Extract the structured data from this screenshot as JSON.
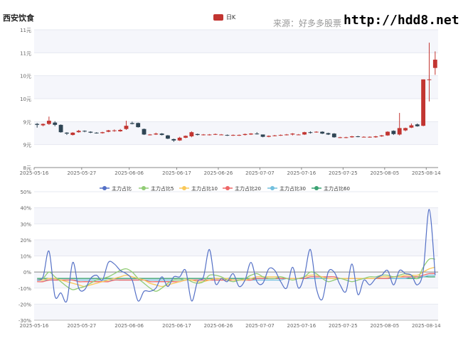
{
  "header": {
    "title": "西安饮食",
    "source": "来源：好多多股票",
    "site": "http://hdd8.net"
  },
  "chart_data": [
    {
      "type": "candlestick",
      "legend": [
        "日K"
      ],
      "up_color": "#c23531",
      "down_color": "#2f4554",
      "y_tick_labels": [
        "8元",
        "9元",
        "9元",
        "10元",
        "10元",
        "11元",
        "11元"
      ],
      "ylim": [
        8.0,
        11.0
      ],
      "x_tick_labels": [
        "2025-05-16",
        "2025-05-27",
        "2025-06-06",
        "2025-06-17",
        "2025-06-26",
        "2025-07-07",
        "2025-07-16",
        "2025-07-25",
        "2025-08-05",
        "2025-08-14"
      ],
      "candles": [
        [
          8.95,
          8.93,
          8.87,
          8.97
        ],
        [
          8.92,
          8.95,
          8.9,
          8.96
        ],
        [
          8.95,
          9.02,
          8.93,
          9.11
        ],
        [
          8.98,
          8.93,
          8.9,
          9.01
        ],
        [
          8.93,
          8.77,
          8.76,
          8.94
        ],
        [
          8.76,
          8.74,
          8.71,
          8.77
        ],
        [
          8.71,
          8.76,
          8.7,
          8.77
        ],
        [
          8.77,
          8.8,
          8.76,
          8.82
        ],
        [
          8.8,
          8.79,
          8.77,
          8.81
        ],
        [
          8.78,
          8.76,
          8.75,
          8.79
        ],
        [
          8.76,
          8.75,
          8.74,
          8.77
        ],
        [
          8.75,
          8.77,
          8.74,
          8.78
        ],
        [
          8.78,
          8.81,
          8.77,
          8.82
        ],
        [
          8.8,
          8.81,
          8.78,
          8.83
        ],
        [
          8.79,
          8.82,
          8.78,
          8.84
        ],
        [
          8.84,
          8.91,
          8.82,
          9.02
        ],
        [
          8.97,
          8.95,
          8.94,
          9.0
        ],
        [
          8.97,
          8.88,
          8.87,
          8.98
        ],
        [
          8.84,
          8.72,
          8.71,
          8.85
        ],
        [
          8.72,
          8.72,
          8.7,
          8.73
        ],
        [
          8.72,
          8.74,
          8.71,
          8.76
        ],
        [
          8.74,
          8.71,
          8.7,
          8.75
        ],
        [
          8.7,
          8.63,
          8.62,
          8.71
        ],
        [
          8.62,
          8.59,
          8.56,
          8.63
        ],
        [
          8.59,
          8.65,
          8.58,
          8.67
        ],
        [
          8.65,
          8.69,
          8.64,
          8.7
        ],
        [
          8.68,
          8.77,
          8.66,
          8.79
        ],
        [
          8.73,
          8.71,
          8.7,
          8.74
        ],
        [
          8.71,
          8.72,
          8.7,
          8.73
        ],
        [
          8.71,
          8.72,
          8.7,
          8.73
        ],
        [
          8.72,
          8.73,
          8.71,
          8.74
        ],
        [
          8.72,
          8.72,
          8.71,
          8.73
        ],
        [
          8.71,
          8.7,
          8.69,
          8.72
        ],
        [
          8.7,
          8.71,
          8.69,
          8.72
        ],
        [
          8.7,
          8.71,
          8.69,
          8.72
        ],
        [
          8.71,
          8.73,
          8.7,
          8.74
        ],
        [
          8.72,
          8.74,
          8.71,
          8.75
        ],
        [
          8.74,
          8.73,
          8.72,
          8.77
        ],
        [
          8.72,
          8.67,
          8.66,
          8.72
        ],
        [
          8.67,
          8.69,
          8.66,
          8.7
        ],
        [
          8.69,
          8.7,
          8.68,
          8.71
        ],
        [
          8.7,
          8.71,
          8.69,
          8.72
        ],
        [
          8.71,
          8.72,
          8.7,
          8.73
        ],
        [
          8.72,
          8.74,
          8.7,
          8.75
        ],
        [
          8.72,
          8.72,
          8.71,
          8.73
        ],
        [
          8.72,
          8.77,
          8.71,
          8.78
        ],
        [
          8.77,
          8.76,
          8.74,
          8.79
        ],
        [
          8.77,
          8.78,
          8.76,
          8.79
        ],
        [
          8.78,
          8.74,
          8.73,
          8.79
        ],
        [
          8.75,
          8.72,
          8.71,
          8.76
        ],
        [
          8.74,
          8.66,
          8.65,
          8.75
        ],
        [
          8.65,
          8.66,
          8.64,
          8.67
        ],
        [
          8.65,
          8.66,
          8.64,
          8.67
        ],
        [
          8.66,
          8.68,
          8.65,
          8.69
        ],
        [
          8.68,
          8.67,
          8.66,
          8.69
        ],
        [
          8.67,
          8.67,
          8.66,
          8.68
        ],
        [
          8.66,
          8.67,
          8.65,
          8.68
        ],
        [
          8.66,
          8.68,
          8.65,
          8.69
        ],
        [
          8.68,
          8.7,
          8.67,
          8.71
        ],
        [
          8.7,
          8.78,
          8.69,
          8.79
        ],
        [
          8.8,
          8.73,
          8.71,
          8.81
        ],
        [
          8.72,
          8.86,
          8.7,
          9.19
        ],
        [
          8.81,
          8.86,
          8.79,
          8.87
        ],
        [
          8.87,
          8.92,
          8.86,
          8.96
        ],
        [
          8.94,
          8.9,
          8.89,
          8.96
        ],
        [
          8.91,
          9.92,
          8.9,
          9.92
        ],
        [
          9.92,
          9.92,
          9.44,
          10.72
        ],
        [
          10.17,
          10.35,
          10.02,
          10.53
        ]
      ]
    },
    {
      "type": "line",
      "legend_names": [
        "主力占比",
        "主力占比5",
        "主力占比10",
        "主力占比20",
        "主力占比30",
        "主力占比60"
      ],
      "colors": [
        "#5470c6",
        "#91cc75",
        "#fac858",
        "#ee6666",
        "#73c0de",
        "#3ba272"
      ],
      "y_tick_labels": [
        "-30%",
        "-20%",
        "-10%",
        "0%",
        "10%",
        "20%",
        "30%",
        "40%",
        "50%"
      ],
      "ylim": [
        -30,
        50
      ],
      "x_tick_labels": [
        "2025-05-16",
        "2025-05-27",
        "2025-06-06",
        "2025-06-17",
        "2025-06-26",
        "2025-07-07",
        "2025-07-16",
        "2025-07-25",
        "2025-08-05",
        "2025-08-14"
      ],
      "series": [
        {
          "name": "主力占比",
          "values": [
            -5,
            -3,
            13,
            -15,
            -13,
            -18,
            6,
            -10,
            -11,
            -4,
            -2,
            -5,
            6,
            5,
            1,
            -1,
            -5,
            -18,
            -12,
            -12,
            -10,
            -3,
            -9,
            -3,
            -3,
            1,
            -18,
            -6,
            -3,
            14,
            -7,
            -4,
            -6,
            -1,
            -9,
            -5,
            6,
            -6,
            -7,
            2,
            1,
            -6,
            -10,
            3,
            -10,
            -2,
            14,
            -10,
            -17,
            0,
            0,
            -8,
            -12,
            5,
            -14,
            -5,
            -8,
            -4,
            -2,
            1,
            -8,
            1,
            -1,
            -2,
            -8,
            1,
            39,
            -2
          ]
        },
        {
          "name": "主力占比5",
          "values": [
            -5,
            -4,
            0,
            -3,
            -6,
            -9,
            -11,
            -10,
            -9,
            -7,
            -5,
            -4,
            -3,
            -1,
            1,
            2,
            0,
            -4,
            -7,
            -10,
            -12,
            -10,
            -7,
            -5,
            -5,
            -4,
            -6,
            -7,
            -6,
            -2,
            -2,
            -3,
            -5,
            -6,
            -5,
            -4,
            -2,
            -1,
            -3,
            -4,
            -4,
            -3,
            -4,
            -5,
            -4,
            -3,
            0,
            -1,
            -4,
            -6,
            -5,
            -4,
            -5,
            -6,
            -5,
            -4,
            -3,
            -3,
            -2,
            -2,
            -3,
            -2,
            -1,
            -2,
            -4,
            3,
            8,
            8
          ]
        },
        {
          "name": "主力占比10",
          "values": [
            -5,
            -5,
            -4,
            -4,
            -5,
            -6,
            -7,
            -8,
            -9,
            -8,
            -7,
            -6,
            -5,
            -4,
            -3,
            -2,
            -3,
            -4,
            -5,
            -7,
            -8,
            -9,
            -8,
            -7,
            -6,
            -5,
            -5,
            -6,
            -6,
            -5,
            -4,
            -4,
            -4,
            -5,
            -5,
            -5,
            -4,
            -3,
            -3,
            -3,
            -3,
            -3,
            -4,
            -4,
            -4,
            -3,
            -2,
            -2,
            -3,
            -4,
            -4,
            -4,
            -4,
            -4,
            -4,
            -4,
            -4,
            -4,
            -3,
            -3,
            -3,
            -3,
            -2,
            -2,
            -2,
            0,
            2,
            3
          ]
        },
        {
          "name": "主力占比20",
          "values": [
            -6,
            -6,
            -5,
            -5,
            -5,
            -5,
            -5,
            -6,
            -6,
            -6,
            -6,
            -6,
            -6,
            -5,
            -5,
            -5,
            -5,
            -5,
            -5,
            -6,
            -6,
            -6,
            -6,
            -6,
            -6,
            -5,
            -5,
            -5,
            -5,
            -5,
            -5,
            -5,
            -5,
            -5,
            -5,
            -5,
            -5,
            -4,
            -4,
            -4,
            -4,
            -4,
            -4,
            -4,
            -4,
            -4,
            -3,
            -3,
            -3,
            -3,
            -3,
            -4,
            -4,
            -4,
            -4,
            -4,
            -4,
            -4,
            -4,
            -4,
            -3,
            -3,
            -3,
            -3,
            -3,
            -2,
            -1,
            -1
          ]
        },
        {
          "name": "主力占比30",
          "values": [
            -5,
            -5,
            -5,
            -5,
            -5,
            -5,
            -5,
            -5,
            -5,
            -5,
            -5,
            -5,
            -5,
            -5,
            -5,
            -5,
            -5,
            -5,
            -5,
            -5,
            -5,
            -5,
            -5,
            -5,
            -5,
            -5,
            -5,
            -5,
            -5,
            -5,
            -5,
            -5,
            -5,
            -5,
            -5,
            -5,
            -5,
            -5,
            -5,
            -5,
            -5,
            -5,
            -4,
            -4,
            -4,
            -4,
            -4,
            -4,
            -4,
            -4,
            -4,
            -4,
            -4,
            -4,
            -4,
            -4,
            -4,
            -4,
            -4,
            -4,
            -4,
            -4,
            -4,
            -3,
            -3,
            -3,
            -2,
            -2
          ]
        },
        {
          "name": "主力占比60",
          "values": [
            -4,
            -4,
            -4,
            -4,
            -4,
            -4,
            -4,
            -4,
            -4,
            -4,
            -4,
            -4,
            -4,
            -4,
            -4,
            -4,
            -4,
            -4,
            -4,
            -4,
            -4,
            -4,
            -4,
            -4,
            -4,
            -4,
            -4,
            -4,
            -4,
            -4,
            -4,
            -4,
            -4,
            -4,
            -4,
            -4,
            -4,
            -4,
            -4,
            -4,
            -4,
            -4,
            -4,
            -4,
            -4,
            -4,
            -4,
            -4,
            -4,
            -4,
            -4,
            -4,
            -4,
            -4,
            -4,
            -4,
            -4,
            -4,
            -4,
            -4,
            -4,
            -4,
            -4,
            -4,
            -4,
            -3,
            -3,
            -3
          ]
        }
      ]
    }
  ]
}
